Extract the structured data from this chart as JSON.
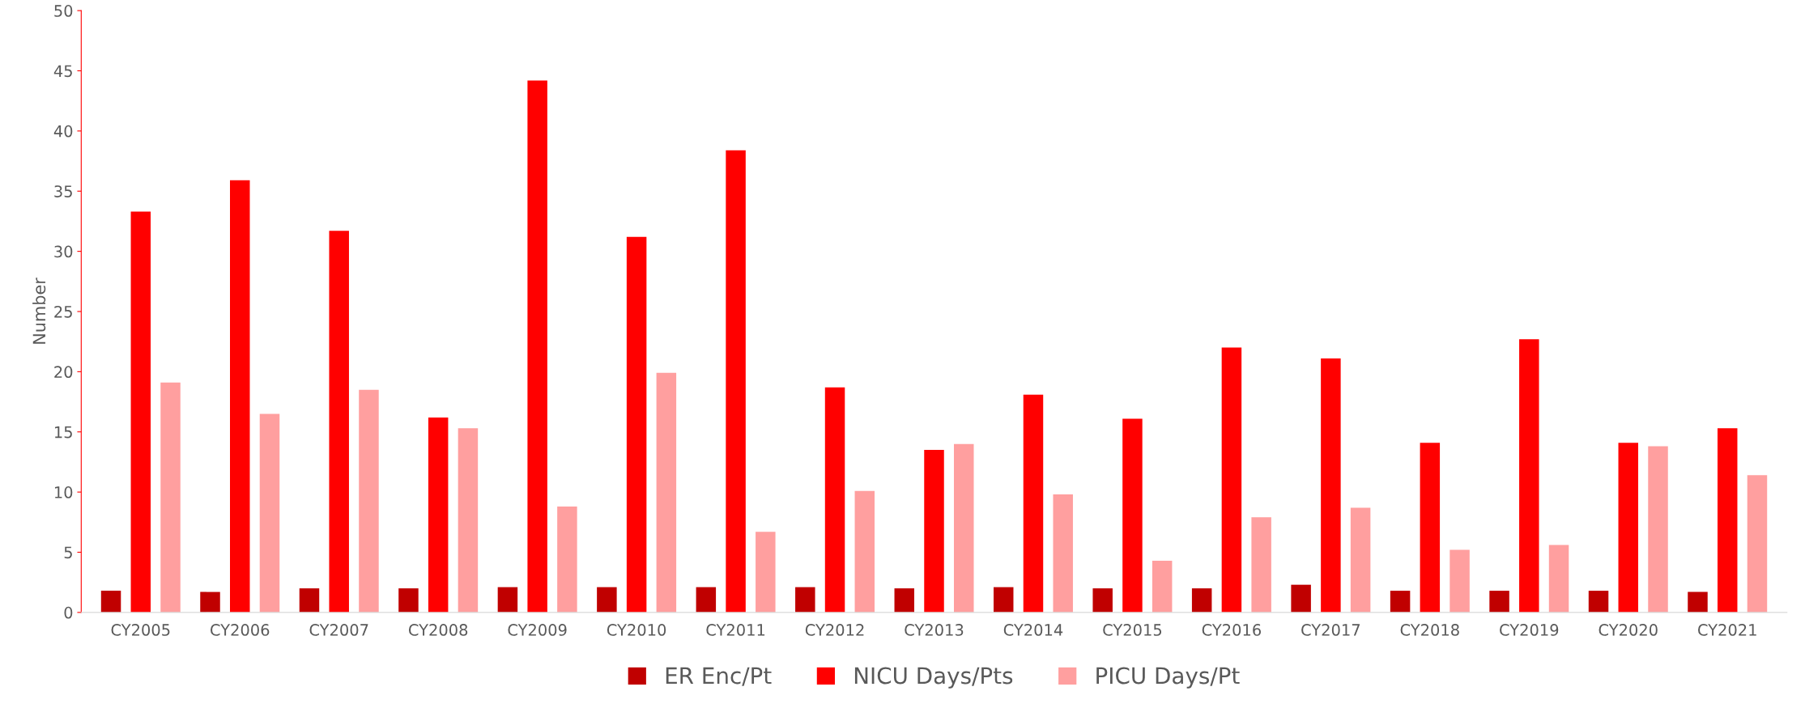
{
  "chart_data": {
    "type": "bar",
    "ylabel": "Number",
    "categories": [
      "CY2005",
      "CY2006",
      "CY2007",
      "CY2008",
      "CY2009",
      "CY2010",
      "CY2011",
      "CY2012",
      "CY2013",
      "CY2014",
      "CY2015",
      "CY2016",
      "CY2017",
      "CY2018",
      "CY2019",
      "CY2020",
      "CY2021"
    ],
    "series": [
      {
        "name": "ER Enc/Pt",
        "color": "#c00000",
        "values": [
          1.8,
          1.7,
          2.0,
          2.0,
          2.1,
          2.1,
          2.1,
          2.1,
          2.0,
          2.1,
          2.0,
          2.0,
          2.3,
          1.8,
          1.8,
          1.8,
          1.7
        ]
      },
      {
        "name": "NICU Days/Pts",
        "color": "#ff0000",
        "values": [
          33.3,
          35.9,
          31.7,
          16.2,
          44.2,
          31.2,
          38.4,
          18.7,
          13.5,
          18.1,
          16.1,
          22.0,
          21.1,
          14.1,
          22.7,
          14.1,
          15.3
        ]
      },
      {
        "name": "PICU Days/Pt",
        "color": "#ff9f9f",
        "values": [
          19.1,
          16.5,
          18.5,
          15.3,
          8.8,
          19.9,
          6.7,
          10.1,
          14.0,
          9.8,
          4.3,
          7.9,
          8.7,
          5.2,
          5.6,
          13.8,
          11.4
        ]
      }
    ],
    "ylim": [
      0,
      50
    ],
    "yticks": [
      0,
      5,
      10,
      15,
      20,
      25,
      30,
      35,
      40,
      45,
      50
    ],
    "grid": false,
    "legend": "bottom"
  }
}
